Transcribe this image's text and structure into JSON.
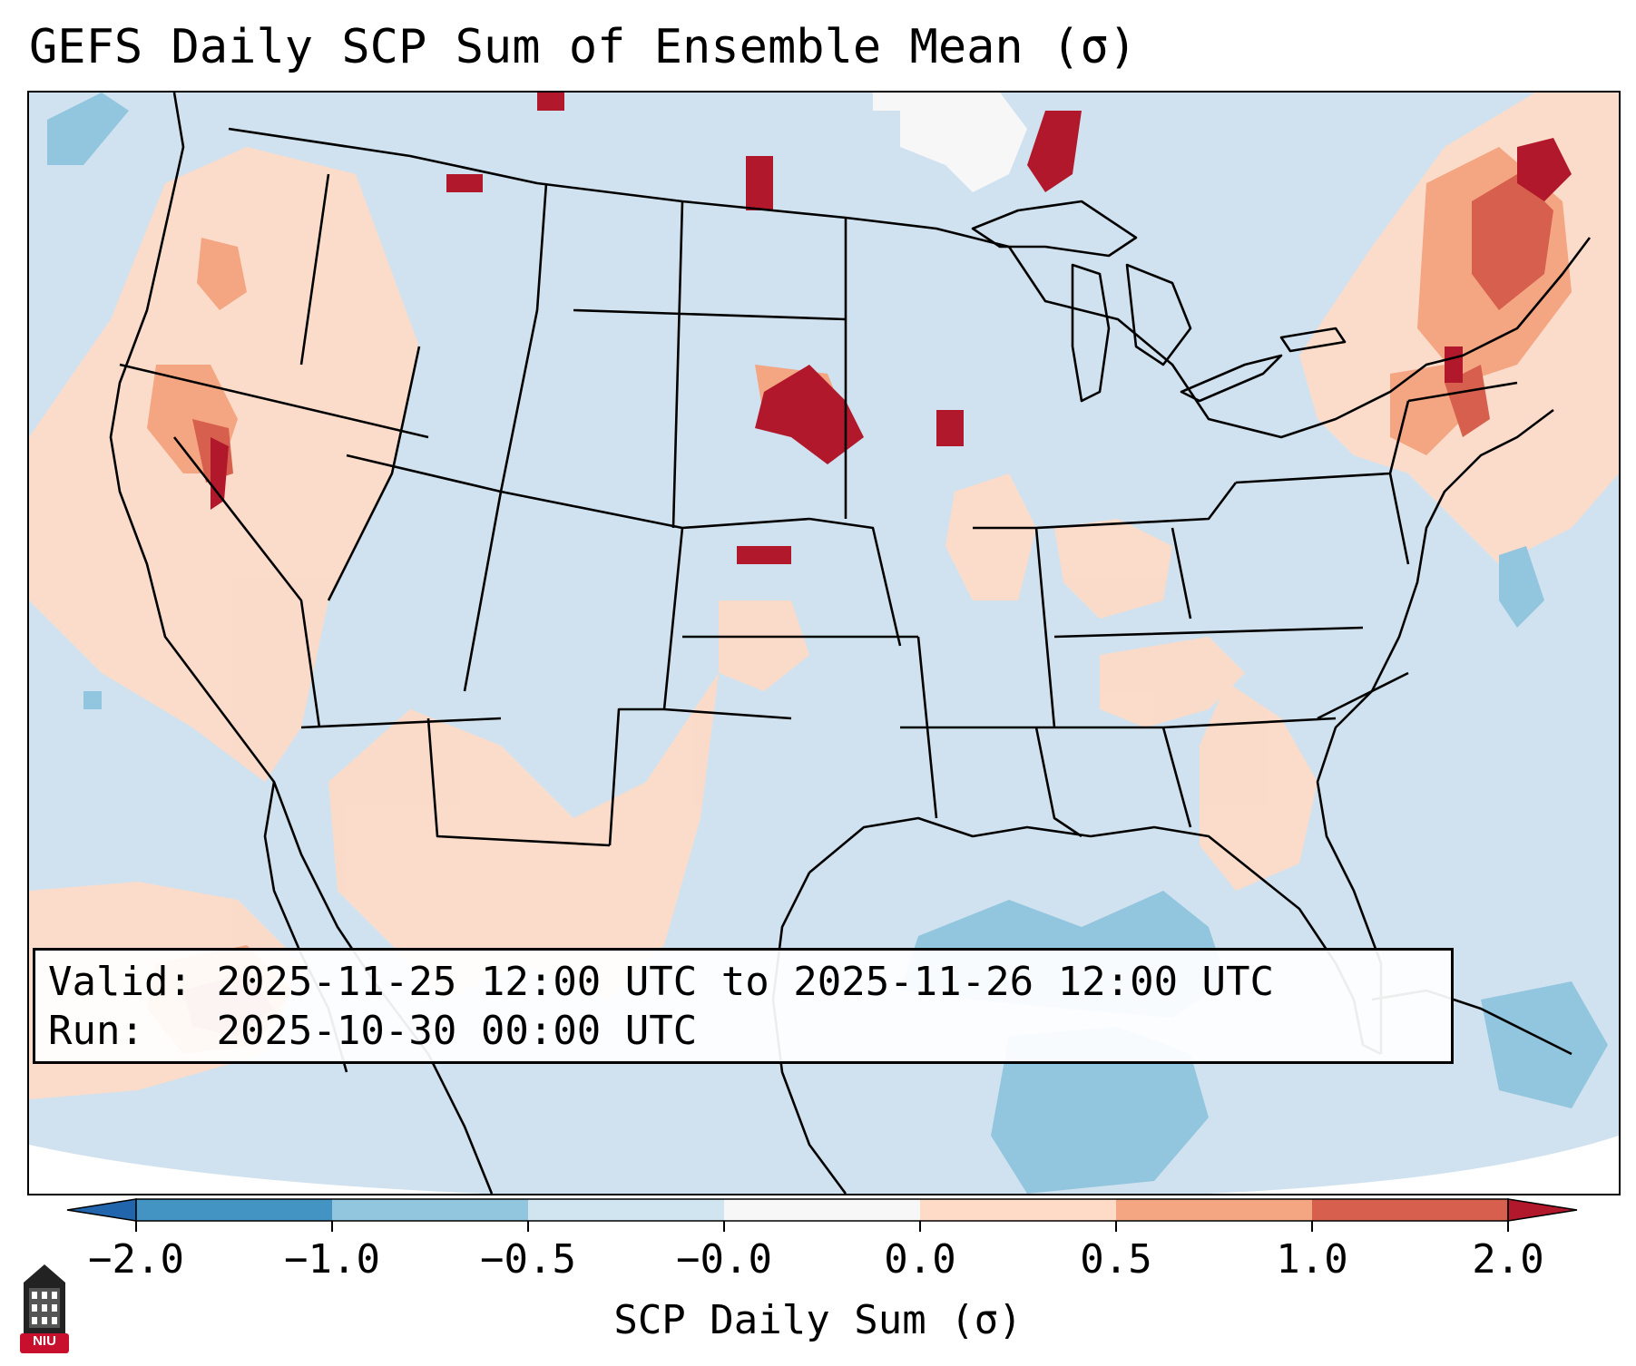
{
  "title": "GEFS Daily SCP Sum of Ensemble Mean (σ)",
  "info": {
    "valid_label": "Valid:",
    "valid_value": "2025-11-25 12:00 UTC to 2025-11-26 12:00 UTC",
    "run_label": "Run:",
    "run_value": "2025-10-30 00:00 UTC"
  },
  "colorbar": {
    "label": "SCP Daily Sum (σ)",
    "ticks": [
      "−2.0",
      "−1.0",
      "−0.5",
      "−0.0",
      "0.0",
      "0.5",
      "1.0",
      "2.0"
    ],
    "bins": [
      {
        "from": "-2.0",
        "to": "-1.0",
        "color": "#4393c3"
      },
      {
        "from": "-1.0",
        "to": "-0.5",
        "color": "#92c5de"
      },
      {
        "from": "-0.5",
        "to": "-0.0",
        "color": "#d1e5f0"
      },
      {
        "from": "-0.0",
        "to": "0.0",
        "color": "#f7f7f7"
      },
      {
        "from": "0.0",
        "to": "0.5",
        "color": "#fddbc7"
      },
      {
        "from": "0.5",
        "to": "1.0",
        "color": "#f4a582"
      },
      {
        "from": "1.0",
        "to": "2.0",
        "color": "#d6604d"
      }
    ],
    "under_color": "#2166ac",
    "over_color": "#b2182b"
  },
  "logo": {
    "text": "NIU",
    "icon": "university-tower-icon"
  },
  "colors": {
    "ocean_background": "#d0e2ef",
    "anomaly_high": "#b2182b",
    "anomaly_low": "#92c5de"
  }
}
